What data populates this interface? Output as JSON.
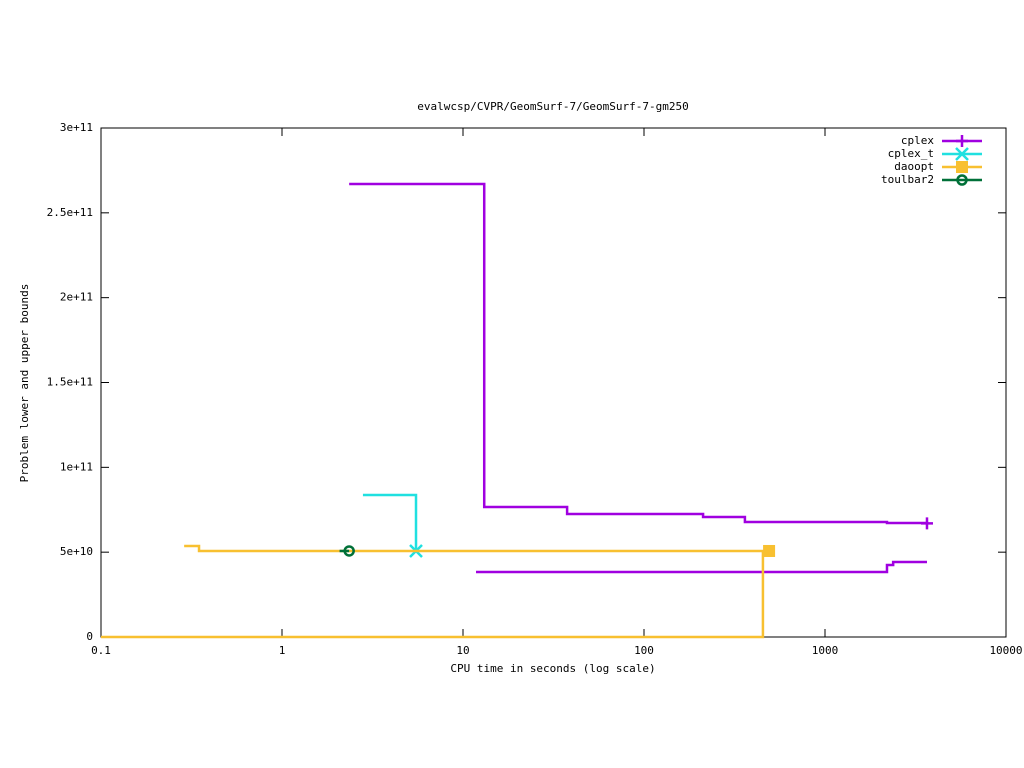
{
  "chart_data": {
    "type": "line",
    "steps": true,
    "title": "evalwcsp/CVPR/GeomSurf-7/GeomSurf-7-gm250",
    "x_label": "CPU time in seconds (log scale)",
    "y_label": "Problem lower and upper bounds",
    "xscale": "log",
    "xlim": [
      0.1,
      10000
    ],
    "xticks": [
      0.1,
      1,
      10,
      100,
      1000,
      10000
    ],
    "ylim": [
      0,
      300000000000
    ],
    "yticks": [
      {
        "value": 0,
        "label": "0"
      },
      {
        "value": 50000000000,
        "label": "5e+10"
      },
      {
        "value": 100000000000,
        "label": "1e+11"
      },
      {
        "value": 150000000000,
        "label": "1.5e+11"
      },
      {
        "value": 200000000000,
        "label": "2e+11"
      },
      {
        "value": 250000000000,
        "label": "2.5e+11"
      },
      {
        "value": 300000000000,
        "label": "3e+11"
      }
    ],
    "legend": "top right",
    "series": [
      {
        "name": "cplex",
        "color": "#a000e0",
        "marker": "plus",
        "x": [
          2.35,
          13.1,
          37.6,
          212,
          361,
          2200,
          3660
        ],
        "values": [
          267000000000,
          76600000000,
          72500000000,
          70700000000,
          67800000000,
          67200000000,
          67000000000
        ],
        "lower_x": [
          11.8,
          2200,
          2380,
          3660
        ],
        "lower_values": [
          38300000000,
          42400000000,
          44200000000,
          44200000000
        ]
      },
      {
        "name": "cplex_t",
        "color": "#20e0e0",
        "marker": "cross",
        "x": [
          2.8,
          5.5
        ],
        "values": [
          83700000000,
          50700000000
        ]
      },
      {
        "name": "daoopt",
        "color": "#f8c030",
        "marker": "square",
        "x": [
          0.288,
          0.348,
          491
        ],
        "values": [
          53600000000,
          50700000000,
          50700000000
        ],
        "lower_x": [
          0.1,
          454
        ],
        "lower_values": [
          0,
          50700000000
        ]
      },
      {
        "name": "toulbar2",
        "color": "#007038",
        "marker": "circle",
        "x": [
          2.08,
          2.35
        ],
        "values": [
          50700000000,
          50700000000
        ]
      }
    ]
  }
}
